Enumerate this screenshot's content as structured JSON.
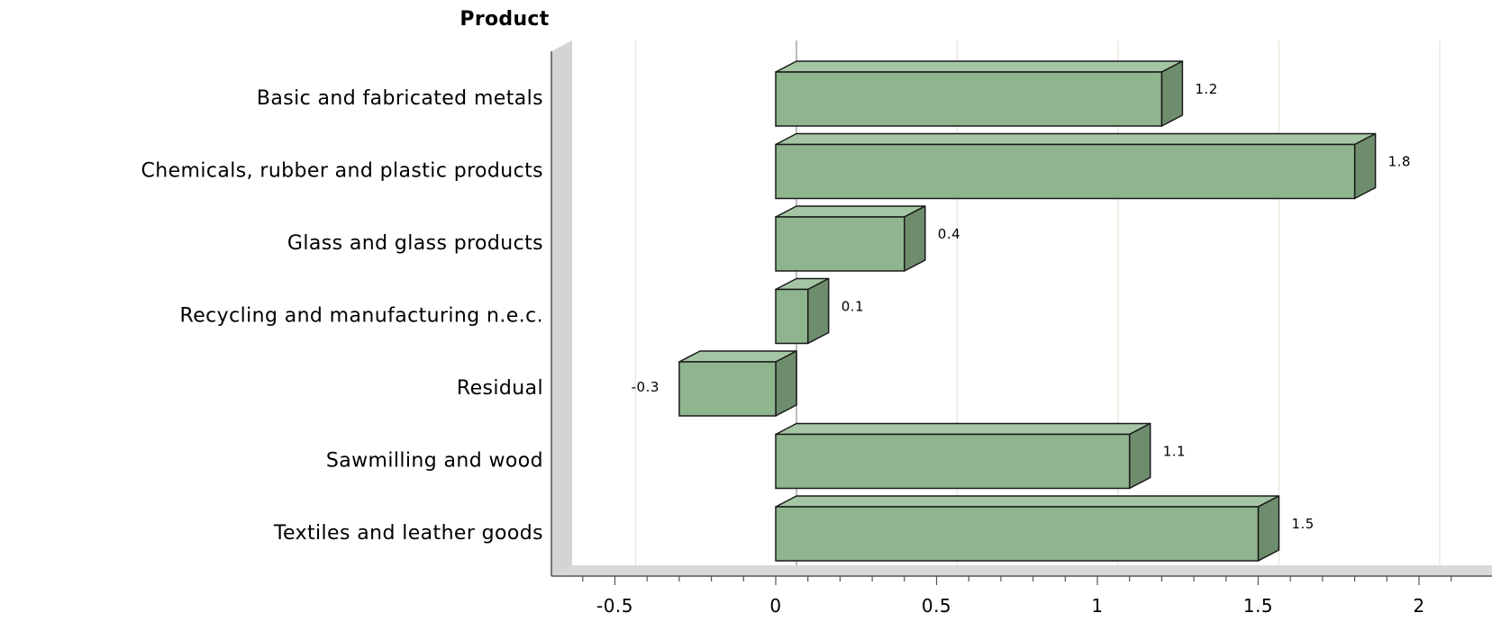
{
  "chart_data": {
    "type": "bar",
    "orientation": "horizontal",
    "style": "3d",
    "axis_title": "Product",
    "categories": [
      "Basic and fabricated metals",
      "Chemicals, rubber and plastic products",
      "Glass and glass products",
      "Recycling and manufacturing n.e.c.",
      "Residual",
      "Sawmilling and wood",
      "Textiles and leather goods"
    ],
    "values": [
      1.2,
      1.8,
      0.4,
      0.1,
      -0.3,
      1.1,
      1.5
    ],
    "data_labels": [
      "1.2",
      "1.8",
      "0.4",
      "0.1",
      "-0.3",
      "1.1",
      "1.5"
    ],
    "x_ticks": [
      -0.5,
      0,
      0.5,
      1,
      1.5,
      2
    ],
    "x_tick_labels": [
      "-0.5",
      "0",
      "0.5",
      "1",
      "1.5",
      "2"
    ],
    "xlim": [
      -0.7,
      2.2
    ],
    "grid": true,
    "legend": "none",
    "colors": {
      "bar_front": "#8fb58e",
      "bar_top": "#a5c6a4",
      "bar_side": "#6e8d6d",
      "wall": "#d4d4d4",
      "floor": "#d9d9d9",
      "gridline": "#e8e8dc"
    }
  }
}
